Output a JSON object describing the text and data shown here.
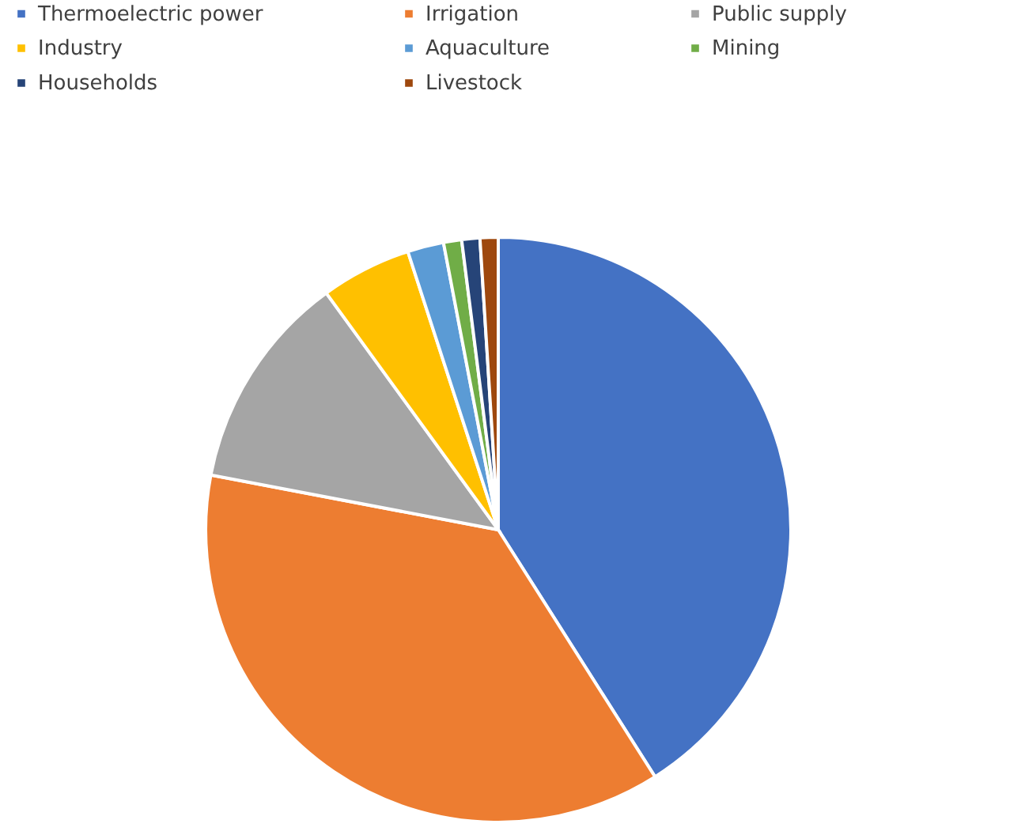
{
  "chart_data": {
    "type": "pie",
    "categories": [
      "Thermoelectric power",
      "Irrigation",
      "Public supply",
      "Industry",
      "Aquaculture",
      "Mining",
      "Households",
      "Livestock"
    ],
    "values": [
      41,
      37,
      12,
      5,
      2,
      1,
      1,
      1
    ],
    "colors": [
      "#4472c4",
      "#ed7d31",
      "#a5a5a5",
      "#ffc000",
      "#5b9bd5",
      "#70ad47",
      "#264478",
      "#9e480e"
    ],
    "legend": "top"
  }
}
